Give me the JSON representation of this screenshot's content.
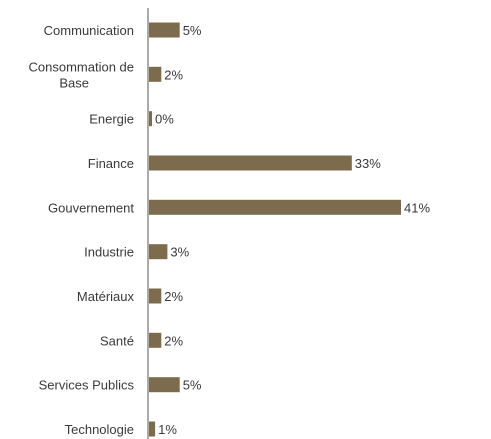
{
  "chart_data": {
    "type": "bar",
    "orientation": "horizontal",
    "categories": [
      [
        "Communication"
      ],
      [
        "Consommation de",
        "Base"
      ],
      [
        "Energie"
      ],
      [
        "Finance"
      ],
      [
        "Gouvernement"
      ],
      [
        "Industrie"
      ],
      [
        "Matériaux"
      ],
      [
        "Santé"
      ],
      [
        "Services Publics"
      ],
      [
        "Technologie"
      ]
    ],
    "values": [
      5,
      2,
      0,
      33,
      41,
      3,
      2,
      2,
      5,
      1
    ],
    "value_labels": [
      "5%",
      "2%",
      "0%",
      "33%",
      "41%",
      "3%",
      "2%",
      "2%",
      "5%",
      "1%"
    ],
    "xlim": [
      0,
      41
    ],
    "grid": false,
    "legend": "none",
    "colors": {
      "bar": "#7d6b4d",
      "axis": "#555555",
      "text": "#3a3a3a"
    }
  }
}
